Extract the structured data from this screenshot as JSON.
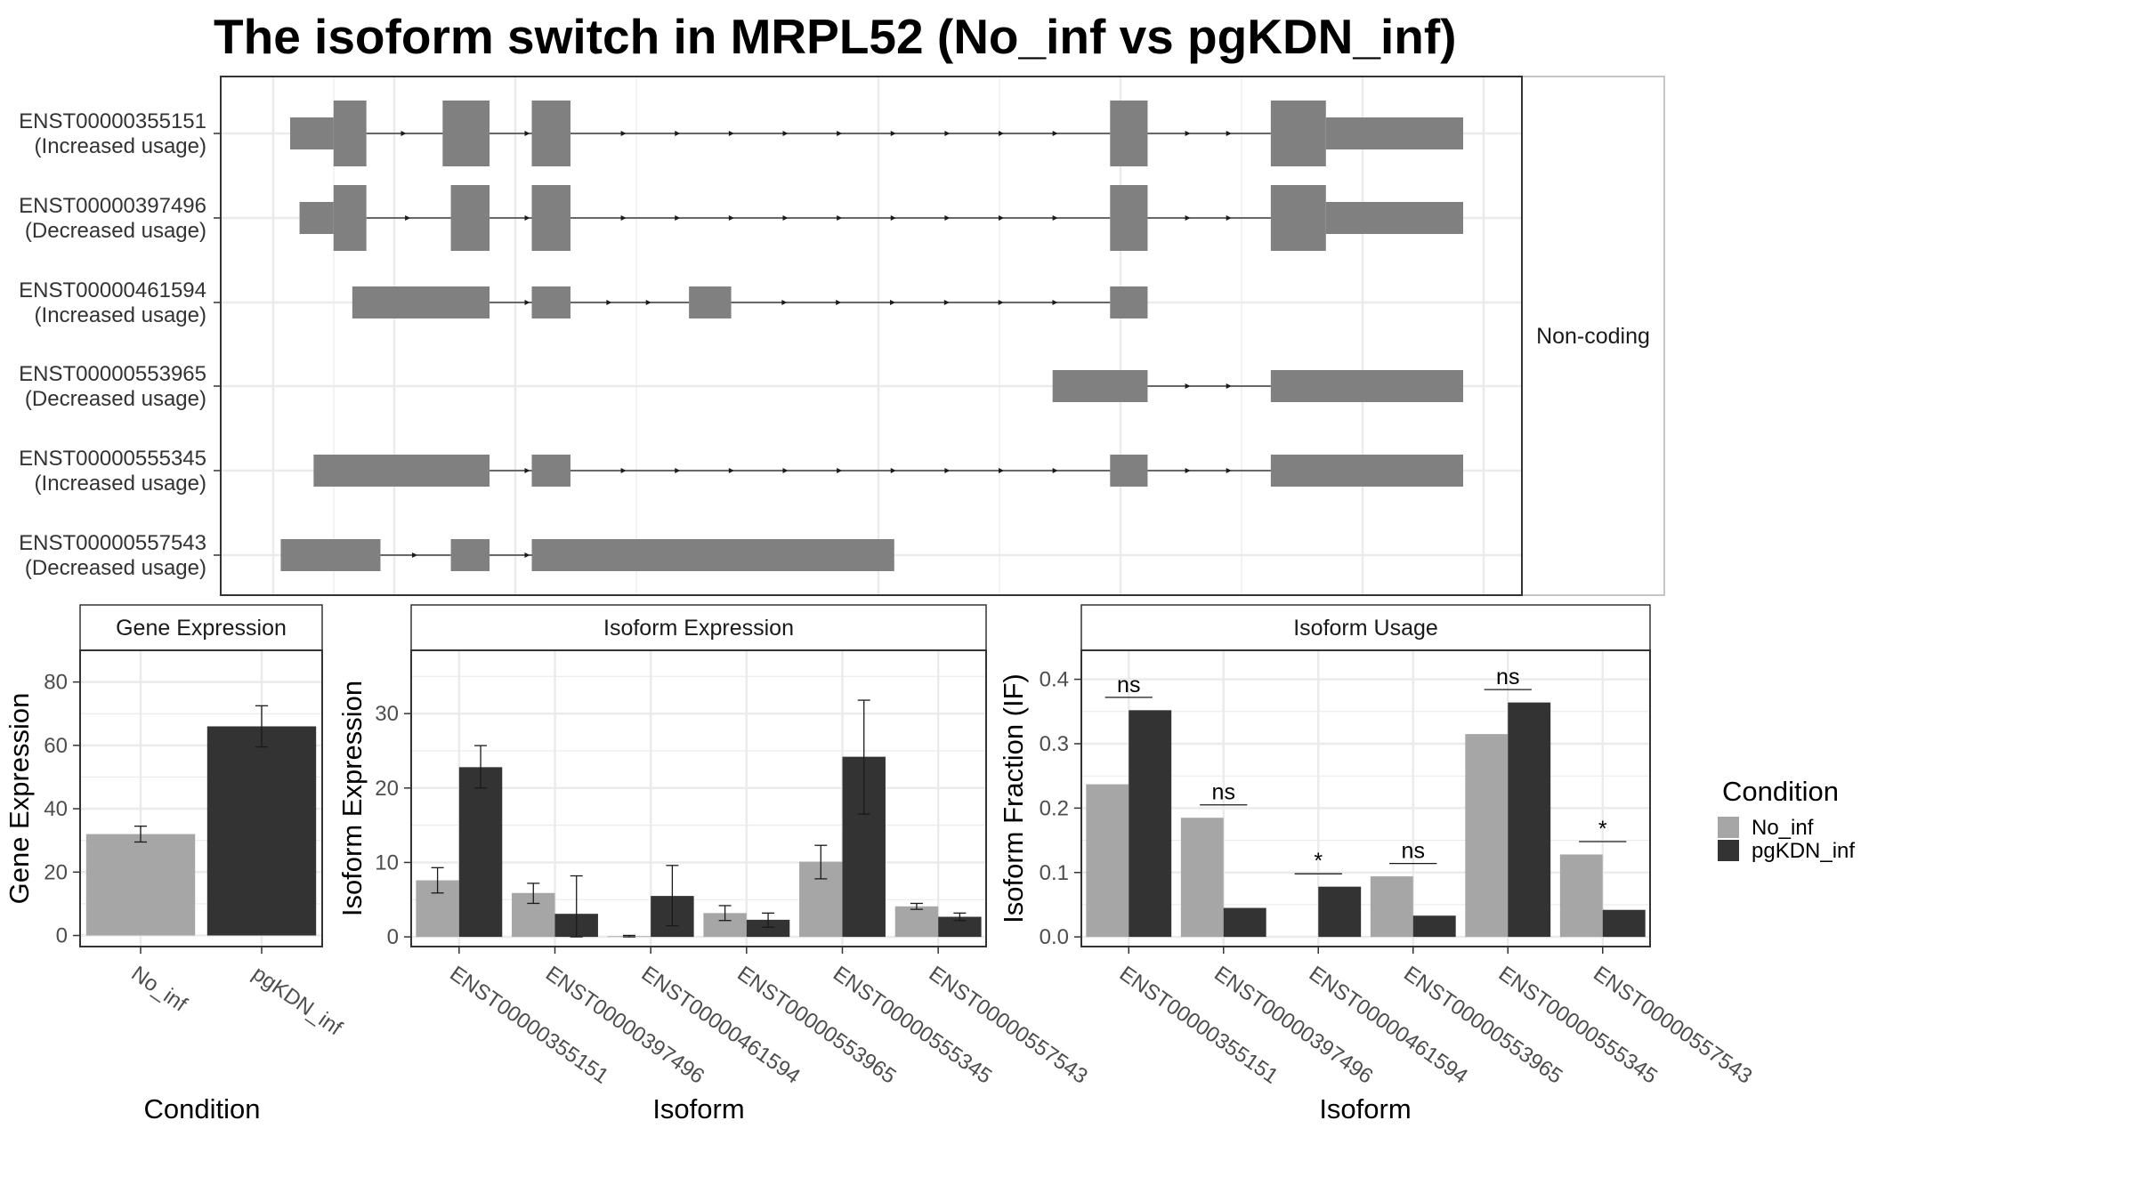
{
  "title": "The isoform switch in MRPL52 (No_inf vs pgKDN_inf)",
  "colors": {
    "No_inf": "#a6a6a6",
    "pgKDN_inf": "#333333",
    "exon": "#808080",
    "grid": "#ebebeb",
    "panel_border": "#333333"
  },
  "structure": {
    "strip_label": "Non-coding",
    "isoforms": [
      {
        "id": "ENST00000355151",
        "label": "(Increased usage)",
        "exons": [
          [
            0.0,
            0.037,
            "utr"
          ],
          [
            0.037,
            0.065,
            "cds"
          ],
          [
            0.13,
            0.17,
            "cds"
          ],
          [
            0.206,
            0.239,
            "cds"
          ],
          [
            0.699,
            0.731,
            "cds"
          ],
          [
            0.836,
            0.883,
            "cds"
          ],
          [
            0.883,
            1.0,
            "utr"
          ]
        ]
      },
      {
        "id": "ENST00000397496",
        "label": "(Decreased usage)",
        "exons": [
          [
            0.008,
            0.037,
            "utr"
          ],
          [
            0.037,
            0.065,
            "cds"
          ],
          [
            0.137,
            0.17,
            "cds"
          ],
          [
            0.206,
            0.239,
            "cds"
          ],
          [
            0.699,
            0.731,
            "cds"
          ],
          [
            0.836,
            0.883,
            "cds"
          ],
          [
            0.883,
            1.0,
            "utr"
          ]
        ]
      },
      {
        "id": "ENST00000461594",
        "label": "(Increased usage)",
        "exons": [
          [
            0.053,
            0.17,
            "utr"
          ],
          [
            0.206,
            0.239,
            "utr"
          ],
          [
            0.34,
            0.376,
            "utr"
          ],
          [
            0.699,
            0.731,
            "utr"
          ]
        ]
      },
      {
        "id": "ENST00000553965",
        "label": "(Decreased usage)",
        "exons": [
          [
            0.65,
            0.731,
            "utr"
          ],
          [
            0.836,
            1.0,
            "utr"
          ]
        ]
      },
      {
        "id": "ENST00000555345",
        "label": "(Increased usage)",
        "exons": [
          [
            0.02,
            0.17,
            "utr"
          ],
          [
            0.206,
            0.239,
            "utr"
          ],
          [
            0.699,
            0.731,
            "utr"
          ],
          [
            0.836,
            1.0,
            "utr"
          ]
        ]
      },
      {
        "id": "ENST00000557543",
        "label": "(Decreased usage)",
        "exons": [
          [
            -0.008,
            0.077,
            "utr"
          ],
          [
            0.137,
            0.17,
            "utr"
          ],
          [
            0.206,
            0.515,
            "utr"
          ]
        ]
      }
    ]
  },
  "chart_data": [
    {
      "type": "bar",
      "title": "Gene Expression",
      "xlabel": "Condition",
      "ylabel": "Gene Expression",
      "categories": [
        "No_inf",
        "pgKDN_inf"
      ],
      "values": [
        32,
        66
      ],
      "errors": [
        [
          29.5,
          34.5
        ],
        [
          59.5,
          72.5
        ]
      ],
      "ylim": [
        -3.5,
        90
      ],
      "yticks": [
        0,
        20,
        40,
        60,
        80
      ]
    },
    {
      "type": "bar",
      "title": "Isoform Expression",
      "xlabel": "Isoform",
      "ylabel": "Isoform Expression",
      "categories": [
        "ENST00000355151",
        "ENST00000397496",
        "ENST00000461594",
        "ENST00000553965",
        "ENST00000555345",
        "ENST00000557543"
      ],
      "series": [
        {
          "name": "No_inf",
          "values": [
            7.6,
            5.9,
            0.1,
            3.2,
            10.1,
            4.1
          ],
          "errors": [
            [
              5.9,
              9.3
            ],
            [
              4.5,
              7.2
            ],
            [
              0.0,
              0.2
            ],
            [
              2.2,
              4.2
            ],
            [
              7.8,
              12.3
            ],
            [
              3.7,
              4.5
            ]
          ]
        },
        {
          "name": "pgKDN_inf",
          "values": [
            22.8,
            3.1,
            5.5,
            2.3,
            24.2,
            2.7
          ],
          "errors": [
            [
              20.0,
              25.7
            ],
            [
              0.0,
              8.2
            ],
            [
              1.5,
              9.6
            ],
            [
              1.3,
              3.2
            ],
            [
              16.5,
              31.8
            ],
            [
              2.2,
              3.2
            ]
          ]
        }
      ],
      "ylim": [
        -1.3,
        38.5
      ],
      "yticks": [
        0,
        10,
        20,
        30
      ]
    },
    {
      "type": "bar",
      "title": "Isoform Usage",
      "xlabel": "Isoform",
      "ylabel": "Isoform Fraction (IF)",
      "categories": [
        "ENST00000355151",
        "ENST00000397496",
        "ENST00000461594",
        "ENST00000553965",
        "ENST00000555345",
        "ENST00000557543"
      ],
      "series": [
        {
          "name": "No_inf",
          "values": [
            0.237,
            0.185,
            0.0,
            0.094,
            0.315,
            0.128
          ]
        },
        {
          "name": "pgKDN_inf",
          "values": [
            0.352,
            0.045,
            0.078,
            0.033,
            0.364,
            0.042
          ]
        }
      ],
      "significance": [
        "ns",
        "ns",
        "*",
        "ns",
        "ns",
        "*"
      ],
      "sig_level": [
        0.372,
        0.205,
        0.098,
        0.114,
        0.384,
        0.148
      ],
      "ylim": [
        -0.015,
        0.445
      ],
      "yticks": [
        0.0,
        0.1,
        0.2,
        0.3,
        0.4
      ],
      "ytick_labels": [
        "0.0",
        "0.1",
        "0.2",
        "0.3",
        "0.4"
      ]
    }
  ],
  "legend": {
    "title": "Condition",
    "items": [
      {
        "label": "No_inf",
        "color": "#a6a6a6"
      },
      {
        "label": "pgKDN_inf",
        "color": "#333333"
      }
    ]
  }
}
